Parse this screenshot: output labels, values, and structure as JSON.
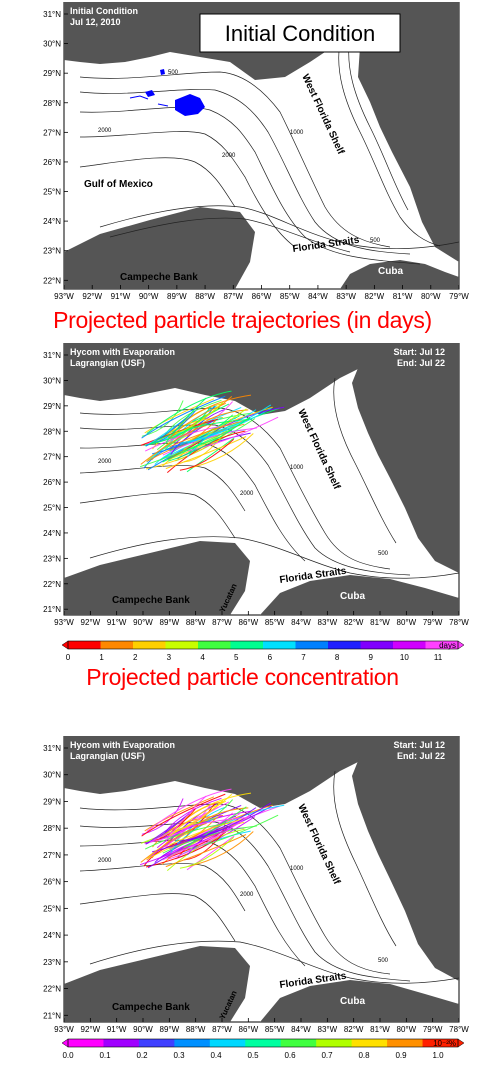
{
  "panels": [
    {
      "id": "initial",
      "header_left": [
        "Initial Condition",
        "Jul 12, 2010"
      ],
      "boxed_title": "Initial Condition",
      "lat_labels": [
        "31°N",
        "30°N",
        "29°N",
        "28°N",
        "27°N",
        "26°N",
        "25°N",
        "24°N",
        "23°N",
        "22°N"
      ],
      "lon_labels": [
        "93°W",
        "92°W",
        "91°W",
        "90°W",
        "89°W",
        "88°W",
        "87°W",
        "86°W",
        "85°W",
        "84°W",
        "83°W",
        "82°W",
        "81°W",
        "80°W",
        "79°W"
      ],
      "labels": {
        "gulf": "Gulf of Mexico",
        "shelf": "West Florida Shelf",
        "straits": "Florida Straits",
        "campeche": "Campeche Bank",
        "cuba": "Cuba"
      },
      "contours": [
        "500",
        "1000",
        "2000",
        "2000",
        "500"
      ]
    },
    {
      "id": "trajectories",
      "header_left": [
        "Hycom      with Evaporation",
        "Lagrangian (USF)"
      ],
      "header_right": [
        "Start: Jul 12",
        "End: Jul 22"
      ],
      "lat_labels": [
        "31°N",
        "30°N",
        "29°N",
        "28°N",
        "27°N",
        "26°N",
        "25°N",
        "24°N",
        "23°N",
        "22°N",
        "21°N"
      ],
      "lon_labels": [
        "93°W",
        "92°W",
        "91°W",
        "90°W",
        "89°W",
        "88°W",
        "87°W",
        "86°W",
        "85°W",
        "84°W",
        "83°W",
        "82°W",
        "81°W",
        "80°W",
        "79°W",
        "78°W"
      ],
      "labels": {
        "shelf": "West Florida Shelf",
        "straits": "Florida Straits",
        "campeche": "Campeche Bank",
        "cuba": "Cuba",
        "yucatan": "Yucatan"
      },
      "contours": [
        "500",
        "2000",
        "2000",
        "1000"
      ],
      "colorbar": {
        "ticks": [
          "0",
          "1",
          "2",
          "3",
          "4",
          "5",
          "6",
          "7",
          "8",
          "9",
          "10",
          "11"
        ],
        "unit": "days",
        "colors": [
          "#ff0000",
          "#ff8800",
          "#ffd000",
          "#c8ff00",
          "#40ff40",
          "#00ff90",
          "#00e0ff",
          "#0080ff",
          "#2020ff",
          "#8000ff",
          "#d000ff",
          "#ff40ff"
        ]
      }
    },
    {
      "id": "concentration",
      "header_left": [
        "Hycom      with Evaporation",
        "Lagrangian (USF)"
      ],
      "header_right": [
        "Start: Jul 12",
        "End: Jul 22"
      ],
      "lat_labels": [
        "31°N",
        "30°N",
        "29°N",
        "28°N",
        "27°N",
        "26°N",
        "25°N",
        "24°N",
        "23°N",
        "22°N",
        "21°N"
      ],
      "lon_labels": [
        "93°W",
        "92°W",
        "91°W",
        "90°W",
        "89°W",
        "88°W",
        "87°W",
        "86°W",
        "85°W",
        "84°W",
        "83°W",
        "82°W",
        "81°W",
        "80°W",
        "79°W",
        "78°W"
      ],
      "labels": {
        "shelf": "West Florida Shelf",
        "straits": "Florida Straits",
        "campeche": "Campeche Bank",
        "cuba": "Cuba",
        "yucatan": "Yucatan"
      },
      "contours": [
        "500",
        "2000",
        "2000",
        "1000"
      ],
      "colorbar": {
        "ticks": [
          "0.0",
          "0.1",
          "0.2",
          "0.3",
          "0.4",
          "0.5",
          "0.6",
          "0.7",
          "0.8",
          "0.9",
          "1.0"
        ],
        "unit": "10⁻²%",
        "colors": [
          "#ff00ff",
          "#a000ff",
          "#4040ff",
          "#0090ff",
          "#00d8ff",
          "#00ffa0",
          "#40ff40",
          "#b0ff00",
          "#ffe000",
          "#ff9000",
          "#ff2000"
        ]
      }
    }
  ],
  "headings": {
    "trajectories": "Projected particle trajectories (in days)",
    "concentration": "Projected particle concentration"
  }
}
